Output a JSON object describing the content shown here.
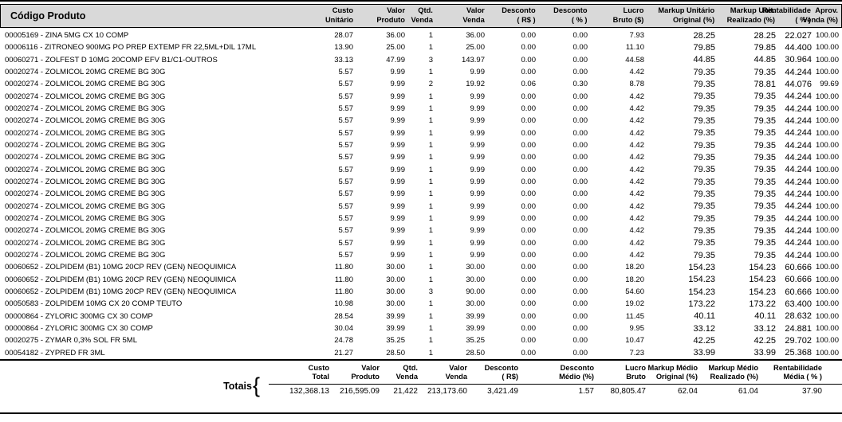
{
  "report": {
    "colors": {
      "header_bg": "#d9d9d9",
      "rule": "#000000",
      "text": "#000000"
    },
    "columns": {
      "product": "Código Produto",
      "cols": [
        {
          "l1": "Custo",
          "l2": "Unitário"
        },
        {
          "l1": "Valor",
          "l2": "Produto"
        },
        {
          "l1": "Qtd.",
          "l2": "Venda"
        },
        {
          "l1": "Valor",
          "l2": "Venda"
        },
        {
          "l1": "Desconto",
          "l2": "( R$ )"
        },
        {
          "l1": "Desconto",
          "l2": "( % )"
        },
        {
          "l1": "Lucro",
          "l2": "Bruto ($)"
        },
        {
          "l1": "Markup Unitário",
          "l2": "Original (%)"
        },
        {
          "l1": "Markup Unit.",
          "l2": "Realizado (%)"
        },
        {
          "l1": "Rentabilidade",
          "l2": "( % )"
        },
        {
          "l1": "Aprov.",
          "l2": "Venda (%)"
        }
      ]
    },
    "rows": [
      [
        "00005169 - ZINA 5MG CX 10 COMP",
        "28.07",
        "36.00",
        "1",
        "36.00",
        "0.00",
        "0.00",
        "7.93",
        "28.25",
        "28.25",
        "22.027",
        "100.00"
      ],
      [
        "00006116 - ZITRONEO 900MG PO PREP EXTEMP FR 22,5ML+DIL 17ML",
        "13.90",
        "25.00",
        "1",
        "25.00",
        "0.00",
        "0.00",
        "11.10",
        "79.85",
        "79.85",
        "44.400",
        "100.00"
      ],
      [
        "00060271 - ZOLFEST D 10MG 20COMP EFV B1/C1-OUTROS",
        "33.13",
        "47.99",
        "3",
        "143.97",
        "0.00",
        "0.00",
        "44.58",
        "44.85",
        "44.85",
        "30.964",
        "100.00"
      ],
      [
        "00020274 - ZOLMICOL 20MG CREME BG 30G",
        "5.57",
        "9.99",
        "1",
        "9.99",
        "0.00",
        "0.00",
        "4.42",
        "79.35",
        "79.35",
        "44.244",
        "100.00"
      ],
      [
        "00020274 - ZOLMICOL 20MG CREME BG 30G",
        "5.57",
        "9.99",
        "2",
        "19.92",
        "0.06",
        "0.30",
        "8.78",
        "79.35",
        "78.81",
        "44.076",
        "99.69"
      ],
      [
        "00020274 - ZOLMICOL 20MG CREME BG 30G",
        "5.57",
        "9.99",
        "1",
        "9.99",
        "0.00",
        "0.00",
        "4.42",
        "79.35",
        "79.35",
        "44.244",
        "100.00"
      ],
      [
        "00020274 - ZOLMICOL 20MG CREME BG 30G",
        "5.57",
        "9.99",
        "1",
        "9.99",
        "0.00",
        "0.00",
        "4.42",
        "79.35",
        "79.35",
        "44.244",
        "100.00"
      ],
      [
        "00020274 - ZOLMICOL 20MG CREME BG 30G",
        "5.57",
        "9.99",
        "1",
        "9.99",
        "0.00",
        "0.00",
        "4.42",
        "79.35",
        "79.35",
        "44.244",
        "100.00"
      ],
      [
        "00020274 - ZOLMICOL 20MG CREME BG 30G",
        "5.57",
        "9.99",
        "1",
        "9.99",
        "0.00",
        "0.00",
        "4.42",
        "79.35",
        "79.35",
        "44.244",
        "100.00"
      ],
      [
        "00020274 - ZOLMICOL 20MG CREME BG 30G",
        "5.57",
        "9.99",
        "1",
        "9.99",
        "0.00",
        "0.00",
        "4.42",
        "79.35",
        "79.35",
        "44.244",
        "100.00"
      ],
      [
        "00020274 - ZOLMICOL 20MG CREME BG 30G",
        "5.57",
        "9.99",
        "1",
        "9.99",
        "0.00",
        "0.00",
        "4.42",
        "79.35",
        "79.35",
        "44.244",
        "100.00"
      ],
      [
        "00020274 - ZOLMICOL 20MG CREME BG 30G",
        "5.57",
        "9.99",
        "1",
        "9.99",
        "0.00",
        "0.00",
        "4.42",
        "79.35",
        "79.35",
        "44.244",
        "100.00"
      ],
      [
        "00020274 - ZOLMICOL 20MG CREME BG 30G",
        "5.57",
        "9.99",
        "1",
        "9.99",
        "0.00",
        "0.00",
        "4.42",
        "79.35",
        "79.35",
        "44.244",
        "100.00"
      ],
      [
        "00020274 - ZOLMICOL 20MG CREME BG 30G",
        "5.57",
        "9.99",
        "1",
        "9.99",
        "0.00",
        "0.00",
        "4.42",
        "79.35",
        "79.35",
        "44.244",
        "100.00"
      ],
      [
        "00020274 - ZOLMICOL 20MG CREME BG 30G",
        "5.57",
        "9.99",
        "1",
        "9.99",
        "0.00",
        "0.00",
        "4.42",
        "79.35",
        "79.35",
        "44.244",
        "100.00"
      ],
      [
        "00020274 - ZOLMICOL 20MG CREME BG 30G",
        "5.57",
        "9.99",
        "1",
        "9.99",
        "0.00",
        "0.00",
        "4.42",
        "79.35",
        "79.35",
        "44.244",
        "100.00"
      ],
      [
        "00020274 - ZOLMICOL 20MG CREME BG 30G",
        "5.57",
        "9.99",
        "1",
        "9.99",
        "0.00",
        "0.00",
        "4.42",
        "79.35",
        "79.35",
        "44.244",
        "100.00"
      ],
      [
        "00020274 - ZOLMICOL 20MG CREME BG 30G",
        "5.57",
        "9.99",
        "1",
        "9.99",
        "0.00",
        "0.00",
        "4.42",
        "79.35",
        "79.35",
        "44.244",
        "100.00"
      ],
      [
        "00020274 - ZOLMICOL 20MG CREME BG 30G",
        "5.57",
        "9.99",
        "1",
        "9.99",
        "0.00",
        "0.00",
        "4.42",
        "79.35",
        "79.35",
        "44.244",
        "100.00"
      ],
      [
        "00060652 - ZOLPIDEM (B1) 10MG 20CP REV (GEN) NEOQUIMICA",
        "11.80",
        "30.00",
        "1",
        "30.00",
        "0.00",
        "0.00",
        "18.20",
        "154.23",
        "154.23",
        "60.666",
        "100.00"
      ],
      [
        "00060652 - ZOLPIDEM (B1) 10MG 20CP REV (GEN) NEOQUIMICA",
        "11.80",
        "30.00",
        "1",
        "30.00",
        "0.00",
        "0.00",
        "18.20",
        "154.23",
        "154.23",
        "60.666",
        "100.00"
      ],
      [
        "00060652 - ZOLPIDEM (B1) 10MG 20CP REV (GEN) NEOQUIMICA",
        "11.80",
        "30.00",
        "3",
        "90.00",
        "0.00",
        "0.00",
        "54.60",
        "154.23",
        "154.23",
        "60.666",
        "100.00"
      ],
      [
        "00050583 - ZOLPIDEM 10MG CX 20 COMP TEUTO",
        "10.98",
        "30.00",
        "1",
        "30.00",
        "0.00",
        "0.00",
        "19.02",
        "173.22",
        "173.22",
        "63.400",
        "100.00"
      ],
      [
        "00000864 - ZYLORIC 300MG CX 30 COMP",
        "28.54",
        "39.99",
        "1",
        "39.99",
        "0.00",
        "0.00",
        "11.45",
        "40.11",
        "40.11",
        "28.632",
        "100.00"
      ],
      [
        "00000864 - ZYLORIC 300MG CX 30 COMP",
        "30.04",
        "39.99",
        "1",
        "39.99",
        "0.00",
        "0.00",
        "9.95",
        "33.12",
        "33.12",
        "24.881",
        "100.00"
      ],
      [
        "00020275 - ZYMAR 0,3% SOL FR 5ML",
        "24.78",
        "35.25",
        "1",
        "35.25",
        "0.00",
        "0.00",
        "10.47",
        "42.25",
        "42.25",
        "29.702",
        "100.00"
      ],
      [
        "00054182 - ZYPRED FR 3ML",
        "21.27",
        "28.50",
        "1",
        "28.50",
        "0.00",
        "0.00",
        "7.23",
        "33.99",
        "33.99",
        "25.368",
        "100.00"
      ]
    ],
    "totals": {
      "label": "Totais",
      "brace": "{",
      "cols": [
        {
          "l1": "Custo",
          "l2": "Total",
          "value": "132,368.13"
        },
        {
          "l1": "Valor",
          "l2": "Produto",
          "value": "216,595.09"
        },
        {
          "l1": "Qtd.",
          "l2": "Venda",
          "value": "21,422"
        },
        {
          "l1": "Valor",
          "l2": "Venda",
          "value": "213,173.60"
        },
        {
          "l1": "Desconto",
          "l2": "( R$)",
          "value": "3,421.49"
        },
        {
          "l1": "Desconto",
          "l2": "Médio (%)",
          "value": "1.57"
        },
        {
          "l1": "Lucro",
          "l2": "Bruto",
          "value": "80,805.47"
        },
        {
          "l1": "Markup Médio",
          "l2": "Original (%)",
          "value": "62.04"
        },
        {
          "l1": "Markup Médio",
          "l2": "Realizado (%)",
          "value": "61.04"
        },
        {
          "l1": "Rentabilidade",
          "l2": "Média ( % )",
          "value": "37.90"
        }
      ]
    }
  }
}
